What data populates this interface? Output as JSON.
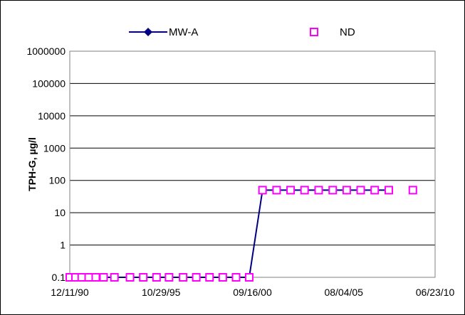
{
  "chart_data": {
    "type": "line",
    "ylabel": "TPH-G, µg/l",
    "yscale": "log",
    "ylim": [
      0.1,
      1000000
    ],
    "yticks": [
      "0.1",
      "1",
      "10",
      "100",
      "1000",
      "10000",
      "100000",
      "1000000"
    ],
    "xlim": [
      "12/11/90",
      "06/23/10"
    ],
    "xticks": [
      "12/11/90",
      "10/29/95",
      "09/16/00",
      "08/04/05",
      "06/23/10"
    ],
    "grid": true,
    "legend_position": "top",
    "series": [
      {
        "name": "MW-A",
        "marker": "diamond",
        "color": "#000080",
        "x": [
          "12/11/90",
          "04/01/91",
          "08/01/91",
          "12/15/91",
          "05/01/92",
          "10/01/92",
          "05/01/93",
          "03/01/94",
          "11/15/94",
          "08/01/95",
          "04/01/96",
          "01/01/97",
          "09/15/97",
          "06/01/98",
          "02/15/99",
          "11/01/99",
          "07/15/00",
          "04/01/01",
          "01/01/02",
          "10/01/02",
          "07/01/03",
          "04/01/04",
          "01/01/05",
          "10/01/05",
          "07/01/06",
          "04/01/07",
          "01/01/08"
        ],
        "values": [
          0.1,
          0.1,
          0.1,
          0.1,
          0.1,
          0.1,
          0.1,
          0.1,
          0.1,
          0.1,
          0.1,
          0.1,
          0.1,
          0.1,
          0.1,
          0.1,
          0.1,
          50,
          50,
          50,
          50,
          50,
          50,
          50,
          50,
          50,
          50
        ]
      },
      {
        "name": "ND",
        "marker": "hollow-square",
        "color": "#ff00ff",
        "x": [
          "12/11/90",
          "04/01/91",
          "08/01/91",
          "12/15/91",
          "05/01/92",
          "10/01/92",
          "05/01/93",
          "03/01/94",
          "11/15/94",
          "08/01/95",
          "04/01/96",
          "01/01/97",
          "09/15/97",
          "06/01/98",
          "02/15/99",
          "11/01/99",
          "07/15/00",
          "04/01/01",
          "01/01/02",
          "10/01/02",
          "07/01/03",
          "04/01/04",
          "01/01/05",
          "10/01/05",
          "07/01/06",
          "04/01/07",
          "01/01/08",
          "04/15/09"
        ],
        "values": [
          0.1,
          0.1,
          0.1,
          0.1,
          0.1,
          0.1,
          0.1,
          0.1,
          0.1,
          0.1,
          0.1,
          0.1,
          0.1,
          0.1,
          0.1,
          0.1,
          0.1,
          50,
          50,
          50,
          50,
          50,
          50,
          50,
          50,
          50,
          50,
          50
        ]
      }
    ]
  }
}
